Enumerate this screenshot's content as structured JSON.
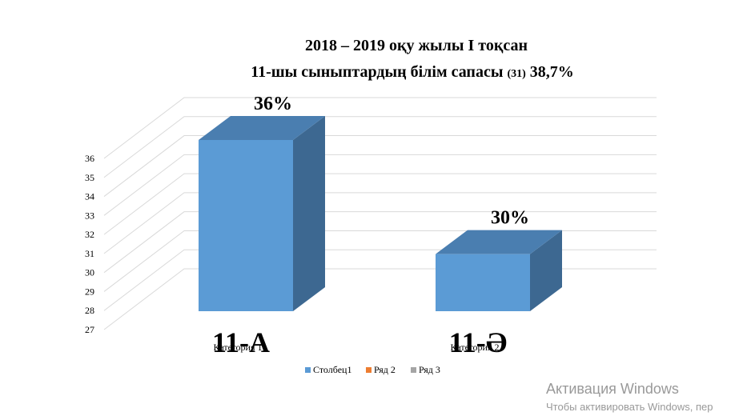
{
  "chart_data": {
    "type": "bar3d",
    "title": [
      "2018 – 2019 оқу жылы I тоқсан",
      [
        "11-шы сыныптардың білім сапасы ",
        "(31)",
        " 38,7%"
      ]
    ],
    "categories": [
      "Категория 1",
      "Категория 2"
    ],
    "annotations": [
      "11-А",
      "11-Ә"
    ],
    "series": [
      {
        "name": "Столбец1",
        "color": "#5b9bd5",
        "values": [
          36,
          30
        ],
        "value_labels": [
          "36%",
          "30%"
        ]
      },
      {
        "name": "Ряд 2",
        "color": "#ed7d31",
        "values": [
          null,
          null
        ]
      },
      {
        "name": "Ряд 3",
        "color": "#a5a5a5",
        "values": [
          null,
          null
        ]
      }
    ],
    "ylim": [
      27,
      36
    ],
    "yticks": [
      27,
      28,
      29,
      30,
      31,
      32,
      33,
      34,
      35,
      36
    ],
    "grid": true,
    "legend": "bottom"
  },
  "watermark": [
    "Активация Windows",
    "Чтобы активировать Windows, пер"
  ]
}
